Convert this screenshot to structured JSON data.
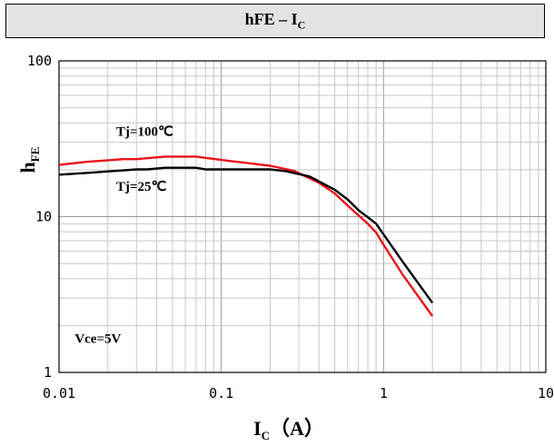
{
  "title": {
    "main": "hFE – I",
    "sub": "C"
  },
  "chart_data": {
    "type": "line",
    "title": "hFE – IC",
    "xlabel": {
      "main": "I",
      "sub": "C",
      "unit": "（A）"
    },
    "ylabel": {
      "main": "h",
      "sub": "FE"
    },
    "x_scale": "log",
    "y_scale": "log",
    "xlim": [
      0.01,
      10
    ],
    "ylim": [
      1,
      100
    ],
    "x_ticks": [
      "0.01",
      "0.1",
      "1",
      "10"
    ],
    "y_ticks": [
      "100",
      "10",
      "1"
    ],
    "grid": true,
    "series": [
      {
        "name": "Tj=100℃",
        "color": "#e8141c",
        "x": [
          0.01,
          0.015,
          0.025,
          0.03,
          0.045,
          0.07,
          0.1,
          0.15,
          0.2,
          0.28,
          0.4,
          0.5,
          0.6,
          0.7,
          0.8,
          0.9,
          1.0,
          1.3,
          2.0
        ],
        "y": [
          21.5,
          22.5,
          23.4,
          23.4,
          24.3,
          24.3,
          23.1,
          22.0,
          21.2,
          19.7,
          16.5,
          14.1,
          11.8,
          10.2,
          9.0,
          7.9,
          6.6,
          4.3,
          2.3
        ]
      },
      {
        "name": "Tj=25℃",
        "color": "#000000",
        "x": [
          0.01,
          0.015,
          0.03,
          0.035,
          0.045,
          0.07,
          0.08,
          0.1,
          0.15,
          0.2,
          0.25,
          0.35,
          0.5,
          0.6,
          0.7,
          0.8,
          0.9,
          1.0,
          1.3,
          2.0
        ],
        "y": [
          18.6,
          19.1,
          20.1,
          20.1,
          20.6,
          20.6,
          20.1,
          20.1,
          20.1,
          20.1,
          19.6,
          18.1,
          14.9,
          12.9,
          11.0,
          9.9,
          9.0,
          7.7,
          5.2,
          2.8
        ]
      }
    ],
    "annotations": [
      {
        "text": "Tj=100℃",
        "x": 0.0225,
        "y": 33
      },
      {
        "text": "Tj=25℃",
        "x": 0.0225,
        "y": 14.7
      },
      {
        "text": "Vce=5V",
        "x": 0.0125,
        "y": 1.55
      }
    ]
  }
}
